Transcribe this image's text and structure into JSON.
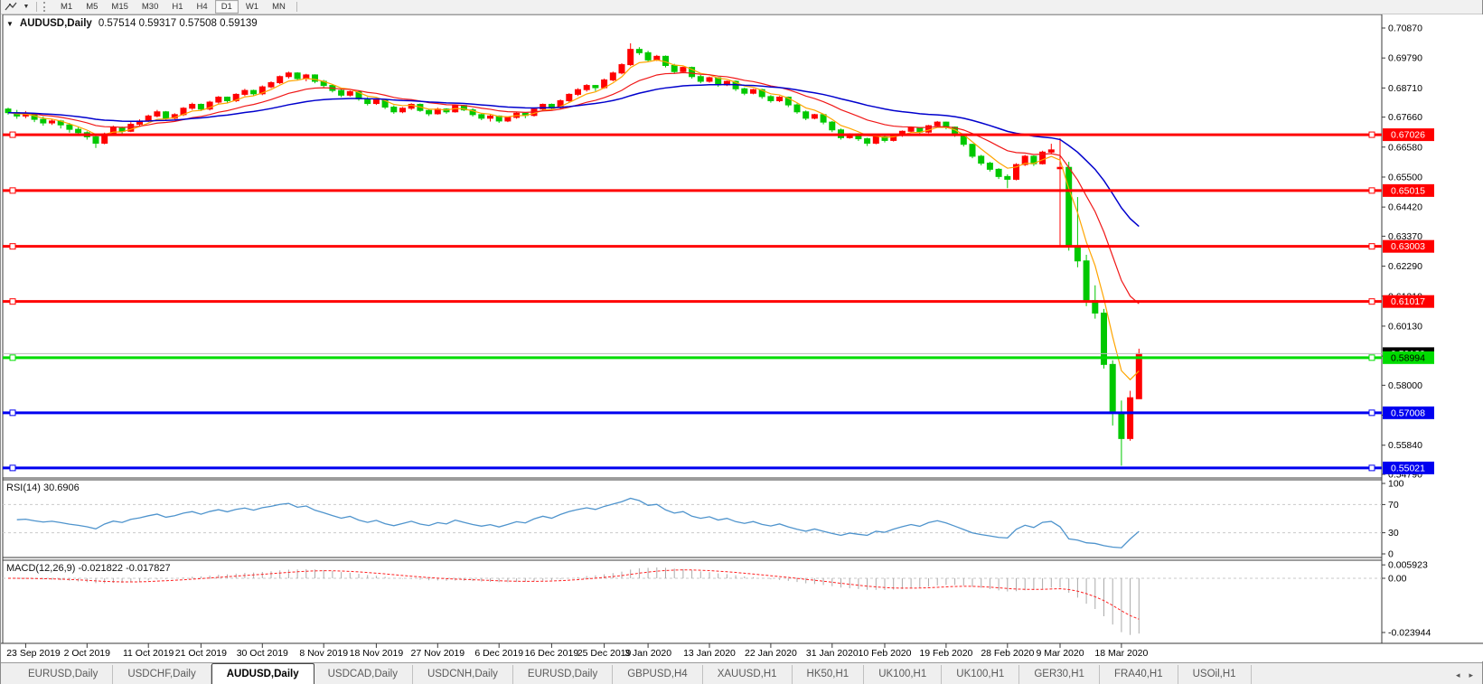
{
  "toolbar": {
    "tool_icon": "chart-cursor",
    "dropdown_caret": "▼",
    "timeframes": [
      "M1",
      "M5",
      "M15",
      "M30",
      "H1",
      "H4",
      "D1",
      "W1",
      "MN"
    ],
    "active_timeframe": "D1"
  },
  "chart_header": {
    "caret": "▼",
    "symbol": "AUDUSD,Daily",
    "ohlc_text": "0.57514 0.59317 0.57508 0.59139"
  },
  "chart_data": {
    "type": "candlestick",
    "symbol": "AUDUSD",
    "timeframe": "Daily",
    "colors": {
      "bull": "#FF0000",
      "bear": "#00C800",
      "ma_fast": "#FFA500",
      "ma_mid": "#F01818",
      "ma_slow": "#0000CD",
      "red_line": "#FF0000",
      "green_line": "#00DC00",
      "blue_line": "#0000F0",
      "rsi": "#4F94CD",
      "level_dash": "#C9C9C9",
      "macd_hist": "#ABABAB",
      "macd_signal": "#FF2222",
      "current_price_line": "#BBBBBB",
      "current_price_box": "#000000"
    },
    "candles": [
      [
        0.6795,
        0.68,
        0.6775,
        0.6782
      ],
      [
        0.6782,
        0.6792,
        0.676,
        0.677
      ],
      [
        0.677,
        0.6788,
        0.6762,
        0.6775
      ],
      [
        0.6775,
        0.678,
        0.6748,
        0.6758
      ],
      [
        0.6758,
        0.6768,
        0.6735,
        0.6745
      ],
      [
        0.6745,
        0.676,
        0.6738,
        0.6752
      ],
      [
        0.6752,
        0.6756,
        0.6725,
        0.6738
      ],
      [
        0.6738,
        0.6745,
        0.671,
        0.6722
      ],
      [
        0.6722,
        0.673,
        0.6698,
        0.671
      ],
      [
        0.671,
        0.6715,
        0.6685,
        0.6695
      ],
      [
        0.6695,
        0.67,
        0.6655,
        0.6672
      ],
      [
        0.6672,
        0.671,
        0.6668,
        0.6705
      ],
      [
        0.6705,
        0.6735,
        0.67,
        0.6728
      ],
      [
        0.6728,
        0.6732,
        0.6705,
        0.6715
      ],
      [
        0.6715,
        0.6748,
        0.6712,
        0.674
      ],
      [
        0.674,
        0.6758,
        0.6735,
        0.6752
      ],
      [
        0.6752,
        0.6775,
        0.6748,
        0.677
      ],
      [
        0.677,
        0.6792,
        0.6765,
        0.6785
      ],
      [
        0.6785,
        0.6788,
        0.6755,
        0.6762
      ],
      [
        0.6762,
        0.678,
        0.6758,
        0.6775
      ],
      [
        0.6775,
        0.6802,
        0.677,
        0.6798
      ],
      [
        0.6798,
        0.6818,
        0.6792,
        0.6812
      ],
      [
        0.6812,
        0.6815,
        0.6788,
        0.6795
      ],
      [
        0.6795,
        0.6825,
        0.679,
        0.682
      ],
      [
        0.682,
        0.6842,
        0.6815,
        0.6838
      ],
      [
        0.6838,
        0.684,
        0.6818,
        0.6825
      ],
      [
        0.6825,
        0.6852,
        0.682,
        0.6848
      ],
      [
        0.6848,
        0.6868,
        0.6842,
        0.6862
      ],
      [
        0.6862,
        0.6865,
        0.6842,
        0.685
      ],
      [
        0.685,
        0.688,
        0.6845,
        0.6875
      ],
      [
        0.6875,
        0.6895,
        0.687,
        0.689
      ],
      [
        0.689,
        0.6916,
        0.6885,
        0.6912
      ],
      [
        0.6912,
        0.693,
        0.6905,
        0.6925
      ],
      [
        0.6925,
        0.6928,
        0.6898,
        0.6905
      ],
      [
        0.6905,
        0.6922,
        0.6895,
        0.6918
      ],
      [
        0.6918,
        0.692,
        0.6888,
        0.6895
      ],
      [
        0.6895,
        0.69,
        0.6872,
        0.688
      ],
      [
        0.688,
        0.6885,
        0.6855,
        0.6862
      ],
      [
        0.6862,
        0.6868,
        0.6838,
        0.6845
      ],
      [
        0.6845,
        0.6862,
        0.684,
        0.6858
      ],
      [
        0.6858,
        0.686,
        0.6825,
        0.6832
      ],
      [
        0.6832,
        0.6838,
        0.6808,
        0.6815
      ],
      [
        0.6815,
        0.6832,
        0.681,
        0.6828
      ],
      [
        0.6828,
        0.683,
        0.6795,
        0.6802
      ],
      [
        0.6802,
        0.6808,
        0.6778,
        0.6785
      ],
      [
        0.6785,
        0.6802,
        0.678,
        0.6798
      ],
      [
        0.6798,
        0.6816,
        0.6792,
        0.6812
      ],
      [
        0.6812,
        0.6815,
        0.6785,
        0.679
      ],
      [
        0.679,
        0.6795,
        0.677,
        0.6778
      ],
      [
        0.6778,
        0.68,
        0.6775,
        0.6795
      ],
      [
        0.6795,
        0.6798,
        0.6778,
        0.6785
      ],
      [
        0.6785,
        0.6812,
        0.6782,
        0.6808
      ],
      [
        0.6808,
        0.681,
        0.6788,
        0.6792
      ],
      [
        0.6792,
        0.6798,
        0.6768,
        0.6775
      ],
      [
        0.6775,
        0.6778,
        0.6755,
        0.6762
      ],
      [
        0.6762,
        0.6775,
        0.675,
        0.677
      ],
      [
        0.677,
        0.6772,
        0.6745,
        0.6752
      ],
      [
        0.6752,
        0.6768,
        0.6748,
        0.6765
      ],
      [
        0.6765,
        0.6785,
        0.676,
        0.678
      ],
      [
        0.678,
        0.6782,
        0.6762,
        0.6772
      ],
      [
        0.6772,
        0.68,
        0.6768,
        0.6795
      ],
      [
        0.6795,
        0.6815,
        0.679,
        0.6812
      ],
      [
        0.6812,
        0.6815,
        0.6792,
        0.68
      ],
      [
        0.68,
        0.683,
        0.6795,
        0.6825
      ],
      [
        0.6825,
        0.6852,
        0.682,
        0.6848
      ],
      [
        0.6848,
        0.687,
        0.6842,
        0.6865
      ],
      [
        0.6865,
        0.6885,
        0.6858,
        0.688
      ],
      [
        0.688,
        0.6882,
        0.686,
        0.6872
      ],
      [
        0.6872,
        0.6905,
        0.6868,
        0.69
      ],
      [
        0.69,
        0.693,
        0.6895,
        0.6925
      ],
      [
        0.6925,
        0.696,
        0.692,
        0.6955
      ],
      [
        0.6955,
        0.7032,
        0.695,
        0.701
      ],
      [
        0.701,
        0.7018,
        0.699,
        0.6998
      ],
      [
        0.6998,
        0.7005,
        0.6965,
        0.6972
      ],
      [
        0.6972,
        0.699,
        0.6968,
        0.6985
      ],
      [
        0.6985,
        0.6988,
        0.6945,
        0.6952
      ],
      [
        0.6952,
        0.6958,
        0.6922,
        0.693
      ],
      [
        0.693,
        0.6948,
        0.6925,
        0.6945
      ],
      [
        0.6945,
        0.6948,
        0.6905,
        0.6912
      ],
      [
        0.6912,
        0.6918,
        0.6888,
        0.6895
      ],
      [
        0.6895,
        0.6912,
        0.689,
        0.6908
      ],
      [
        0.6908,
        0.691,
        0.6875,
        0.6882
      ],
      [
        0.6882,
        0.6898,
        0.6878,
        0.6895
      ],
      [
        0.6895,
        0.6898,
        0.686,
        0.6868
      ],
      [
        0.6868,
        0.6872,
        0.6845,
        0.6852
      ],
      [
        0.6852,
        0.6868,
        0.6848,
        0.6865
      ],
      [
        0.6865,
        0.6868,
        0.6832,
        0.684
      ],
      [
        0.684,
        0.6845,
        0.6818,
        0.6825
      ],
      [
        0.6825,
        0.6842,
        0.682,
        0.6838
      ],
      [
        0.6838,
        0.684,
        0.6802,
        0.681
      ],
      [
        0.681,
        0.6815,
        0.6778,
        0.6785
      ],
      [
        0.6785,
        0.679,
        0.6755,
        0.6762
      ],
      [
        0.6762,
        0.6778,
        0.6758,
        0.6775
      ],
      [
        0.6775,
        0.6778,
        0.674,
        0.6748
      ],
      [
        0.6748,
        0.6752,
        0.6712,
        0.672
      ],
      [
        0.672,
        0.6725,
        0.6685,
        0.6692
      ],
      [
        0.6692,
        0.6708,
        0.6688,
        0.6705
      ],
      [
        0.6705,
        0.6708,
        0.668,
        0.6688
      ],
      [
        0.6688,
        0.6692,
        0.6662,
        0.6672
      ],
      [
        0.6672,
        0.6698,
        0.6668,
        0.6695
      ],
      [
        0.6695,
        0.6698,
        0.6675,
        0.6682
      ],
      [
        0.6682,
        0.6705,
        0.6678,
        0.67
      ],
      [
        0.67,
        0.6718,
        0.6695,
        0.6715
      ],
      [
        0.6715,
        0.6732,
        0.671,
        0.6728
      ],
      [
        0.6728,
        0.673,
        0.6705,
        0.6712
      ],
      [
        0.6712,
        0.6738,
        0.6708,
        0.6735
      ],
      [
        0.6735,
        0.6752,
        0.673,
        0.6748
      ],
      [
        0.6748,
        0.675,
        0.6722,
        0.673
      ],
      [
        0.673,
        0.6732,
        0.6695,
        0.6702
      ],
      [
        0.6702,
        0.6705,
        0.666,
        0.6668
      ],
      [
        0.6668,
        0.667,
        0.6618,
        0.6625
      ],
      [
        0.6625,
        0.663,
        0.6592,
        0.66
      ],
      [
        0.66,
        0.6605,
        0.657,
        0.6578
      ],
      [
        0.6578,
        0.6582,
        0.6543,
        0.6552
      ],
      [
        0.6552,
        0.656,
        0.651,
        0.6542
      ],
      [
        0.6542,
        0.66,
        0.6538,
        0.6595
      ],
      [
        0.6595,
        0.663,
        0.659,
        0.6625
      ],
      [
        0.6625,
        0.6628,
        0.659,
        0.6598
      ],
      [
        0.6598,
        0.6645,
        0.6595,
        0.664
      ],
      [
        0.664,
        0.667,
        0.6632,
        0.6648
      ],
      [
        0.658,
        0.669,
        0.63,
        0.6585
      ],
      [
        0.6585,
        0.6605,
        0.6285,
        0.6302
      ],
      [
        0.6302,
        0.6478,
        0.6225,
        0.6248
      ],
      [
        0.6248,
        0.627,
        0.6085,
        0.6105
      ],
      [
        0.6105,
        0.616,
        0.604,
        0.606
      ],
      [
        0.606,
        0.6075,
        0.586,
        0.5875
      ],
      [
        0.5875,
        0.589,
        0.5655,
        0.57
      ],
      [
        0.57,
        0.5745,
        0.551,
        0.5608
      ],
      [
        0.5608,
        0.578,
        0.56,
        0.5755
      ],
      [
        0.57514,
        0.59317,
        0.57508,
        0.59139
      ]
    ],
    "x_ticks": [
      {
        "label": "23 Sep 2019",
        "i": 2
      },
      {
        "label": "2 Oct 2019",
        "i": 9
      },
      {
        "label": "11 Oct 2019",
        "i": 16
      },
      {
        "label": "21 Oct 2019",
        "i": 22
      },
      {
        "label": "30 Oct 2019",
        "i": 29
      },
      {
        "label": "8 Nov 2019",
        "i": 36
      },
      {
        "label": "18 Nov 2019",
        "i": 42
      },
      {
        "label": "27 Nov 2019",
        "i": 49
      },
      {
        "label": "6 Dec 2019",
        "i": 56
      },
      {
        "label": "16 Dec 2019",
        "i": 62
      },
      {
        "label": "25 Dec 2019",
        "i": 68
      },
      {
        "label": "3 Jan 2020",
        "i": 73
      },
      {
        "label": "13 Jan 2020",
        "i": 80
      },
      {
        "label": "22 Jan 2020",
        "i": 87
      },
      {
        "label": "31 Jan 2020",
        "i": 94
      },
      {
        "label": "10 Feb 2020",
        "i": 100
      },
      {
        "label": "19 Feb 2020",
        "i": 107
      },
      {
        "label": "28 Feb 2020",
        "i": 114
      },
      {
        "label": "9 Mar 2020",
        "i": 120
      },
      {
        "label": "18 Mar 2020",
        "i": 127
      }
    ],
    "y_ticks": [
      "0.70870",
      "0.69790",
      "0.68710",
      "0.67660",
      "0.66580",
      "0.65500",
      "0.64420",
      "0.63370",
      "0.62290",
      "0.61210",
      "0.60130",
      "0.59050",
      "0.58000",
      "0.56920",
      "0.55840",
      "0.54790"
    ],
    "hlines": [
      {
        "price": 0.67026,
        "label": "0.67026",
        "color_key": "red_line",
        "text_color": "#FFFFFF"
      },
      {
        "price": 0.65015,
        "label": "0.65015",
        "color_key": "red_line",
        "text_color": "#FFFFFF"
      },
      {
        "price": 0.63003,
        "label": "0.63003",
        "color_key": "red_line",
        "text_color": "#FFFFFF"
      },
      {
        "price": 0.61017,
        "label": "0.61017",
        "color_key": "red_line",
        "text_color": "#FFFFFF"
      },
      {
        "price": 0.58994,
        "label": "0.58994",
        "color_key": "green_line",
        "text_color": "#000000"
      },
      {
        "price": 0.57008,
        "label": "0.57008",
        "color_key": "blue_line",
        "text_color": "#FFFFFF"
      },
      {
        "price": 0.55021,
        "label": "0.55021",
        "color_key": "blue_line",
        "text_color": "#FFFFFF"
      }
    ],
    "current_price": {
      "value": 0.59139,
      "label": "0.59139"
    },
    "moving_averages": [
      {
        "approx_period": 5,
        "method": "ema",
        "color_key": "ma_fast"
      },
      {
        "approx_period": 14,
        "method": "ema",
        "color_key": "ma_mid"
      },
      {
        "approx_period": 34,
        "method": "ema",
        "color_key": "ma_slow"
      }
    ],
    "rsi": {
      "label": "RSI(14) 30.6906",
      "period": 14,
      "value": 30.6906,
      "levels": [
        70,
        30
      ],
      "scale_ticks": [
        {
          "v": 100,
          "t": "100"
        },
        {
          "v": 70,
          "t": "70"
        },
        {
          "v": 30,
          "t": "30"
        },
        {
          "v": 0,
          "t": "0"
        }
      ]
    },
    "macd": {
      "label": "MACD(12,26,9) -0.021822 -0.017827",
      "fast": 12,
      "slow": 26,
      "signal_period": 9,
      "main_value": -0.021822,
      "signal_value": -0.017827,
      "scale_max": 0.005923,
      "scale_min": -0.023944,
      "scale_ticks": [
        {
          "v": 0.005923,
          "t": "0.005923"
        },
        {
          "v": 0.0,
          "t": "0.00"
        },
        {
          "v": -0.023944,
          "t": "-0.023944"
        }
      ]
    }
  },
  "tabs": {
    "items": [
      "EURUSD,Daily",
      "USDCHF,Daily",
      "AUDUSD,Daily",
      "USDCAD,Daily",
      "USDCNH,Daily",
      "EURUSD,Daily",
      "GBPUSD,H4",
      "XAUUSD,H1",
      "HK50,H1",
      "UK100,H1",
      "UK100,H1",
      "GER30,H1",
      "FRA40,H1",
      "USOil,H1"
    ],
    "active_index": 2,
    "scroll_left": "◂",
    "scroll_right": "▸"
  }
}
